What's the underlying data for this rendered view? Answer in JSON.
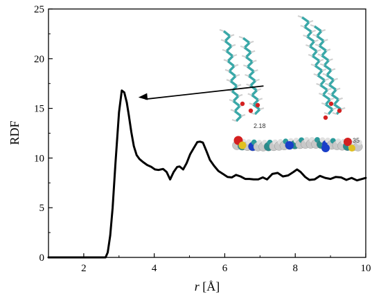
{
  "chart_data": {
    "type": "line",
    "title": "",
    "xlabel_var": "r",
    "xlabel_unit": "[Å]",
    "ylabel": "RDF",
    "xlim": [
      1,
      10
    ],
    "ylim": [
      0,
      25
    ],
    "xticks": [
      2,
      4,
      6,
      8,
      10
    ],
    "yticks": [
      0,
      5,
      10,
      15,
      20,
      25
    ],
    "grid": false,
    "legend": "none",
    "colors": {
      "line": "#000000",
      "arrow": "#000000"
    },
    "series": [
      {
        "x": [
          1.0,
          2.4,
          2.62,
          2.68,
          2.75,
          2.82,
          2.9,
          3.0,
          3.08,
          3.15,
          3.22,
          3.28,
          3.35,
          3.42,
          3.5,
          3.58,
          3.68,
          3.8,
          3.92,
          4.02,
          4.12,
          4.25,
          4.35,
          4.45,
          4.55,
          4.65,
          4.72,
          4.82,
          4.92,
          5.02,
          5.12,
          5.22,
          5.3,
          5.38,
          5.48,
          5.58,
          5.7,
          5.82,
          5.95,
          6.08,
          6.2,
          6.32,
          6.45,
          6.58,
          6.7,
          6.82,
          6.95,
          7.08,
          7.2,
          7.35,
          7.5,
          7.65,
          7.8,
          7.95,
          8.05,
          8.15,
          8.28,
          8.4,
          8.55,
          8.7,
          8.85,
          9.0,
          9.15,
          9.3,
          9.45,
          9.6,
          9.75,
          9.9,
          10.0
        ],
        "y": [
          0.0,
          0.0,
          0.0,
          0.5,
          2.2,
          5.0,
          9.5,
          14.6,
          16.8,
          16.6,
          15.6,
          14.3,
          12.6,
          11.2,
          10.3,
          9.9,
          9.6,
          9.3,
          9.1,
          8.85,
          8.8,
          8.9,
          8.6,
          7.85,
          8.6,
          9.1,
          9.15,
          8.85,
          9.5,
          10.4,
          11.0,
          11.6,
          11.65,
          11.55,
          10.7,
          9.8,
          9.2,
          8.7,
          8.4,
          8.1,
          8.05,
          8.3,
          8.15,
          7.9,
          7.9,
          7.85,
          7.85,
          8.05,
          7.85,
          8.4,
          8.5,
          8.15,
          8.25,
          8.6,
          8.85,
          8.6,
          8.1,
          7.8,
          7.85,
          8.2,
          8.0,
          7.9,
          8.1,
          8.05,
          7.8,
          8.0,
          7.75,
          7.9,
          8.0
        ]
      }
    ],
    "annotations": {
      "arrow": {
        "from": [
          7.1,
          17.25
        ],
        "to": [
          3.55,
          16.1
        ]
      },
      "inset_labels": [
        "2.18",
        "35"
      ]
    }
  }
}
